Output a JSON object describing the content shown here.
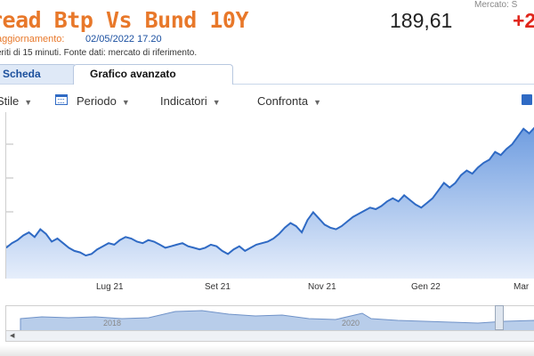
{
  "header": {
    "title": "read Btp Vs Bund 10Y",
    "update_label": "aggiornamento:",
    "update_date": "02/05/2022 17.20",
    "delay_note": "eriti di 15 minuti.  Fonte dati: mercato di riferimento.",
    "price": "189,61",
    "change": "+2",
    "market_label": "Mercato: S"
  },
  "tabs": [
    {
      "label": "Scheda",
      "active": false
    },
    {
      "label": "Grafico avanzato",
      "active": true
    }
  ],
  "toolbar": {
    "stile": "Stile",
    "periodo": "Periodo",
    "indicatori": "Indicatori",
    "confronta": "Confronta",
    "icons": [
      "calendar-icon",
      "export-icon"
    ]
  },
  "colors": {
    "title": "#e8782a",
    "line": "#2f6ac4",
    "fill_top": "#6f9de0",
    "fill_bottom": "#e6eefb",
    "change": "#e0261b"
  },
  "chart_data": {
    "type": "area",
    "x_tick_labels": [
      "Lug 21",
      "Set 21",
      "Nov 21",
      "Gen 22",
      "Mar"
    ],
    "y_tick_labels": [],
    "values": [
      108,
      111,
      113,
      116,
      118,
      115,
      120,
      117,
      112,
      114,
      111,
      108,
      106,
      105,
      103,
      104,
      107,
      109,
      111,
      110,
      113,
      115,
      114,
      112,
      111,
      113,
      112,
      110,
      108,
      109,
      110,
      111,
      109,
      108,
      107,
      108,
      110,
      109,
      106,
      104,
      107,
      109,
      106,
      108,
      110,
      111,
      112,
      114,
      117,
      121,
      124,
      122,
      118,
      126,
      131,
      127,
      123,
      121,
      120,
      122,
      125,
      128,
      130,
      132,
      134,
      133,
      135,
      138,
      140,
      138,
      142,
      139,
      136,
      134,
      137,
      140,
      145,
      150,
      147,
      150,
      155,
      158,
      156,
      160,
      163,
      165,
      170,
      168,
      172,
      175,
      180,
      185,
      182,
      186
    ],
    "values_end_marker": "",
    "navigator": {
      "type": "area",
      "x_tick_labels": [
        "2018",
        "2020"
      ]
    }
  }
}
